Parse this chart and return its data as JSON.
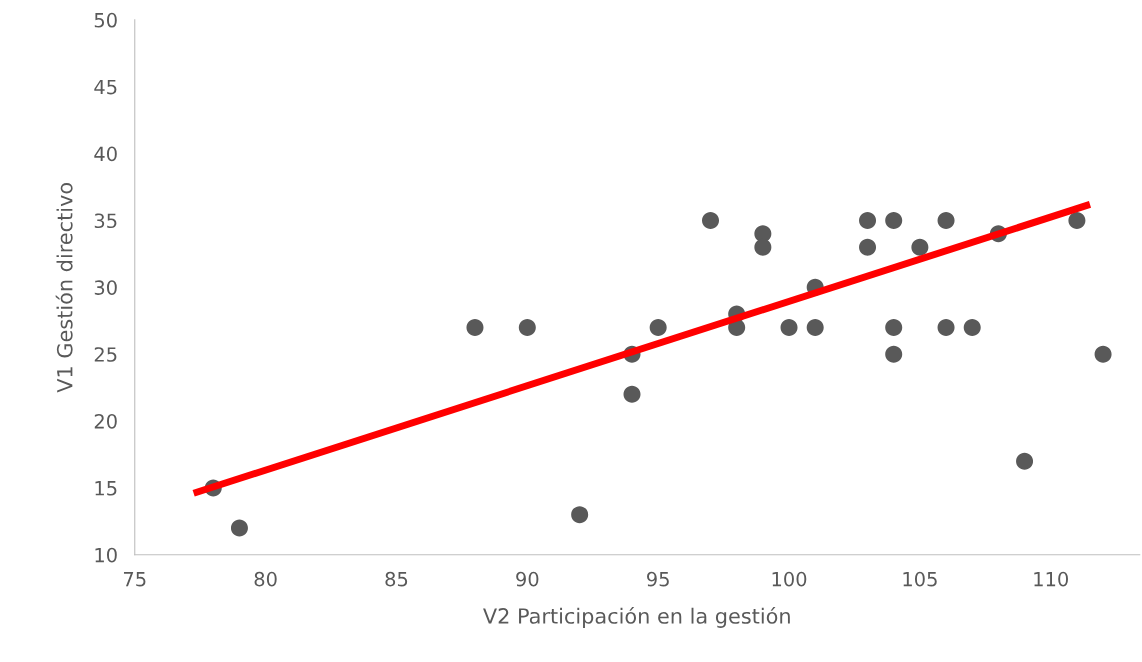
{
  "chart_data": {
    "type": "scatter",
    "xlabel": "V2 Participación en la gestión",
    "ylabel": "V1 Gestión directivo",
    "xlim": [
      75,
      113.4
    ],
    "xticks": [
      75,
      80,
      85,
      90,
      95,
      100,
      105,
      110
    ],
    "ylim": [
      10,
      50
    ],
    "yticks": [
      10,
      15,
      20,
      25,
      30,
      35,
      40,
      45,
      50
    ],
    "grid": false,
    "marker": "circle",
    "series": [
      {
        "color": "#595959",
        "x": [
          78,
          79,
          88,
          90,
          92,
          94,
          94,
          95,
          97,
          98,
          98,
          99,
          99,
          100,
          101,
          101,
          103,
          103,
          104,
          104,
          104,
          105,
          106,
          106,
          107,
          108,
          109,
          111,
          112
        ],
        "values": [
          15,
          12,
          27,
          27,
          13,
          25,
          22,
          27,
          35,
          28,
          27,
          34,
          33,
          27,
          30,
          27,
          35,
          33,
          35,
          27,
          25,
          33,
          35,
          27,
          27,
          34,
          17,
          35,
          25
        ]
      },
      {
        "type": "line",
        "color": "#ff0000",
        "line_style": "solid",
        "marker": "none",
        "x": [
          77.25,
          111.5
        ],
        "values": [
          14.6,
          36.2
        ]
      }
    ]
  }
}
